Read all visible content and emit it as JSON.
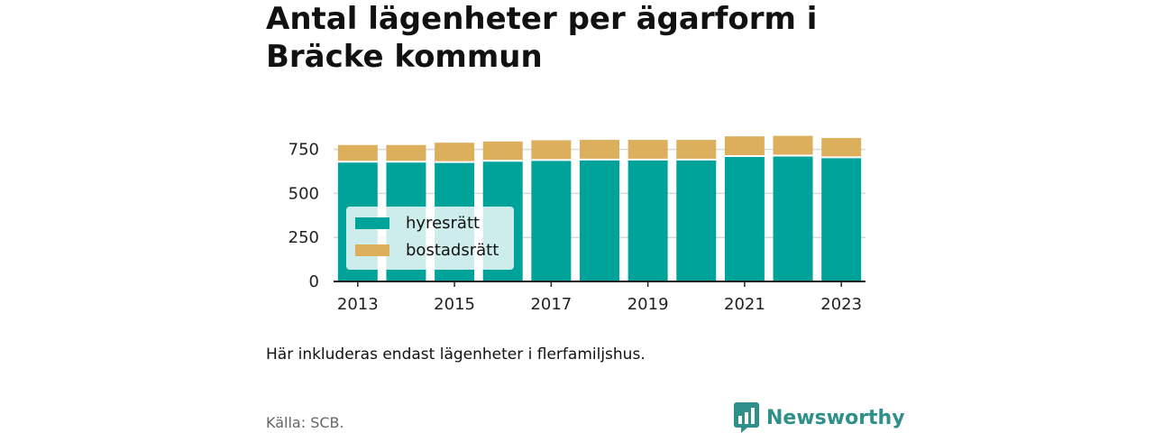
{
  "title": "Antal lägenheter per ägarform i Bräcke kommun",
  "note": "Här inkluderas endast lägenheter i flerfamiljshus.",
  "source": "Källa: SCB.",
  "brand": {
    "name": "Newsworthy",
    "logo_icon": "bar-chart-speech-bubble-icon"
  },
  "colors": {
    "hyresratt": "#00a39a",
    "bostadsratt": "#dbaf5c",
    "grid": "#d9d9d9",
    "axis": "#222222",
    "brand": "#2f8f8a"
  },
  "chart_data": {
    "type": "bar",
    "stacked": true,
    "categories": [
      "2013",
      "2014",
      "2015",
      "2016",
      "2017",
      "2018",
      "2019",
      "2020",
      "2021",
      "2022",
      "2023"
    ],
    "x_tick_labels": [
      "2013",
      "2015",
      "2017",
      "2019",
      "2021",
      "2023"
    ],
    "series": [
      {
        "name": "hyresrätt",
        "values": [
          680,
          680,
          678,
          685,
          690,
          692,
          692,
          692,
          712,
          715,
          705
        ]
      },
      {
        "name": "bostadsrätt",
        "values": [
          95,
          95,
          110,
          110,
          112,
          112,
          112,
          112,
          112,
          112,
          110
        ]
      }
    ],
    "ylim": [
      0,
      830
    ],
    "y_ticks": [
      0,
      250,
      500,
      750
    ],
    "grid": true,
    "legend_position": "bottom-left"
  }
}
